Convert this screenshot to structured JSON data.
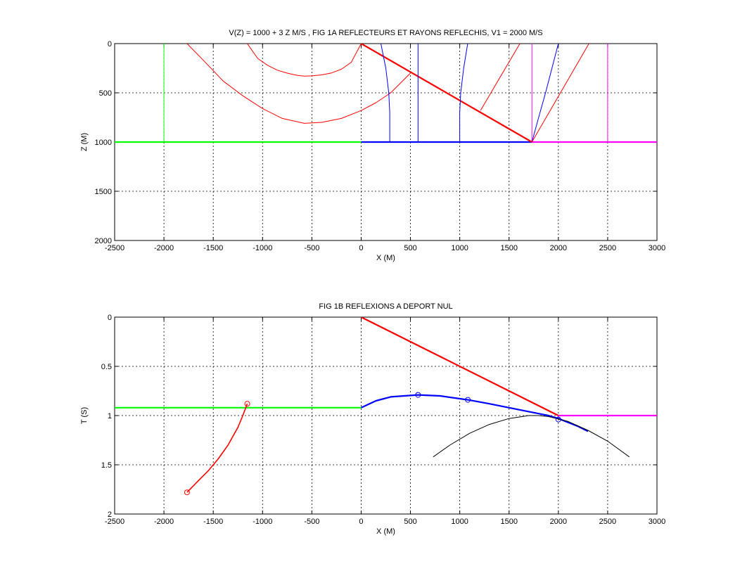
{
  "chart_data": [
    {
      "type": "line",
      "title": "V(Z) = 1000 + 3 Z M/S    , FIG 1A REFLECTEURS ET RAYONS REFLECHIS,   V1 = 2000 M/S",
      "xlabel": "X (M)",
      "ylabel": "Z (M)",
      "xlim": [
        -2500,
        3000
      ],
      "ylim": [
        0,
        2000
      ],
      "y_reversed": true,
      "xticks": [
        "-2500",
        "-2000",
        "-1500",
        "-1000",
        "-500",
        "0",
        "500",
        "1000",
        "1500",
        "2000",
        "2500",
        "3000"
      ],
      "yticks": [
        "0",
        "500",
        "1000",
        "1500",
        "2000"
      ],
      "grid": true,
      "colors": {
        "green": "#00ff00",
        "red": "#ff0000",
        "blue": "#0000ff",
        "magenta": "#ff00ff",
        "black": "#000000"
      },
      "series": [
        {
          "color": "#00ff00",
          "width": 2.2,
          "x": [
            -2500,
            0
          ],
          "y": [
            1000,
            1000
          ]
        },
        {
          "color": "#00ff00",
          "width": 1,
          "x": [
            -2000,
            -2000
          ],
          "y": [
            0,
            1000
          ]
        },
        {
          "color": "#0000ff",
          "width": 2.2,
          "x": [
            0,
            1732
          ],
          "y": [
            1000,
            1000
          ]
        },
        {
          "color": "#ff00ff",
          "width": 2.2,
          "x": [
            1732,
            3000
          ],
          "y": [
            1000,
            1000
          ]
        },
        {
          "color": "#ff00ff",
          "width": 1,
          "x": [
            1732,
            1732
          ],
          "y": [
            0,
            1000
          ]
        },
        {
          "color": "#ff00ff",
          "width": 1,
          "x": [
            2500,
            2500
          ],
          "y": [
            0,
            1000
          ]
        },
        {
          "color": "#ff0000",
          "width": 2.2,
          "x": [
            0,
            1732
          ],
          "y": [
            0,
            1000
          ]
        },
        {
          "color": "#ff0000",
          "width": 1,
          "x": [
            -1766,
            -1600,
            -1400,
            -1200,
            -1000,
            -800,
            -577,
            -400,
            -200,
            0,
            150,
            300,
            500
          ],
          "y": [
            0,
            170,
            380,
            530,
            660,
            760,
            810,
            800,
            760,
            680,
            600,
            500,
            300
          ]
        },
        {
          "color": "#ff0000",
          "width": 1,
          "x": [
            -1155,
            -1050,
            -950,
            -850,
            -750,
            -650,
            -577,
            -500,
            -400,
            -300,
            -200,
            -100,
            0
          ],
          "y": [
            0,
            150,
            220,
            270,
            300,
            322,
            330,
            328,
            318,
            298,
            260,
            190,
            0
          ]
        },
        {
          "color": "#0000ff",
          "width": 1,
          "x": [
            290,
            290,
            280,
            250,
            200
          ],
          "y": [
            1000,
            700,
            500,
            250,
            0
          ]
        },
        {
          "color": "#0000ff",
          "width": 1,
          "x": [
            577,
            577
          ],
          "y": [
            1000,
            0
          ]
        },
        {
          "color": "#0000ff",
          "width": 1,
          "x": [
            1000,
            1000,
            1010,
            1040,
            1080
          ],
          "y": [
            1000,
            700,
            500,
            250,
            0
          ]
        },
        {
          "color": "#0000ff",
          "width": 1,
          "x": [
            1732,
            1800,
            1870,
            1935,
            2000
          ],
          "y": [
            1000,
            750,
            500,
            250,
            0
          ]
        },
        {
          "color": "#ff0000",
          "width": 1,
          "x": [
            1732,
            2310
          ],
          "y": [
            1000,
            0
          ]
        },
        {
          "color": "#ff0000",
          "width": 1,
          "x": [
            1210,
            1610
          ],
          "y": [
            680,
            0
          ]
        }
      ]
    },
    {
      "type": "line",
      "title": "FIG 1B REFLEXIONS A DEPORT NUL",
      "xlabel": "X (M)",
      "ylabel": "T (S)",
      "xlim": [
        -2500,
        3000
      ],
      "ylim": [
        0,
        2
      ],
      "y_reversed": true,
      "xticks": [
        "-2500",
        "-2000",
        "-1500",
        "-1000",
        "-500",
        "0",
        "500",
        "1000",
        "1500",
        "2000",
        "2500",
        "3000"
      ],
      "yticks": [
        "0",
        "0.5",
        "1",
        "1.5",
        "2"
      ],
      "grid": true,
      "series": [
        {
          "color": "#00ff00",
          "width": 2.2,
          "x": [
            -2500,
            0
          ],
          "y": [
            0.92,
            0.92
          ]
        },
        {
          "color": "#ff0000",
          "width": 2.2,
          "x": [
            0,
            2000
          ],
          "y": [
            0,
            1.0
          ]
        },
        {
          "color": "#ff00ff",
          "width": 2.2,
          "x": [
            2000,
            3000
          ],
          "y": [
            1.0,
            1.0
          ]
        },
        {
          "color": "#0000ff",
          "width": 2.2,
          "x": [
            0,
            150,
            300,
            577,
            800,
            1082,
            1300,
            1500,
            1700,
            1900,
            2000,
            2200,
            2300
          ],
          "y": [
            0.92,
            0.85,
            0.81,
            0.79,
            0.8,
            0.84,
            0.88,
            0.92,
            0.96,
            1.0,
            1.03,
            1.11,
            1.16
          ]
        },
        {
          "color": "#ff0000",
          "width": 1.6,
          "x": [
            -1766,
            -1650,
            -1550,
            -1450,
            -1350,
            -1250,
            -1200,
            -1155
          ],
          "y": [
            1.78,
            1.66,
            1.56,
            1.44,
            1.3,
            1.12,
            1.0,
            0.88
          ]
        },
        {
          "color": "#000000",
          "width": 1,
          "x": [
            730,
            900,
            1100,
            1300,
            1500,
            1700,
            1800,
            1900,
            2100,
            2300,
            2500,
            2720
          ],
          "y": [
            1.42,
            1.3,
            1.18,
            1.09,
            1.03,
            1.0,
            1.0,
            1.01,
            1.06,
            1.15,
            1.26,
            1.42
          ]
        }
      ],
      "markers": [
        {
          "color": "#ff0000",
          "x": -1766,
          "y": 1.78
        },
        {
          "color": "#ff0000",
          "x": -1155,
          "y": 0.88
        },
        {
          "color": "#0000ff",
          "x": 577,
          "y": 0.79
        },
        {
          "color": "#0000ff",
          "x": 1082,
          "y": 0.84
        },
        {
          "color": "#0000ff",
          "x": 2000,
          "y": 1.04
        }
      ]
    }
  ]
}
